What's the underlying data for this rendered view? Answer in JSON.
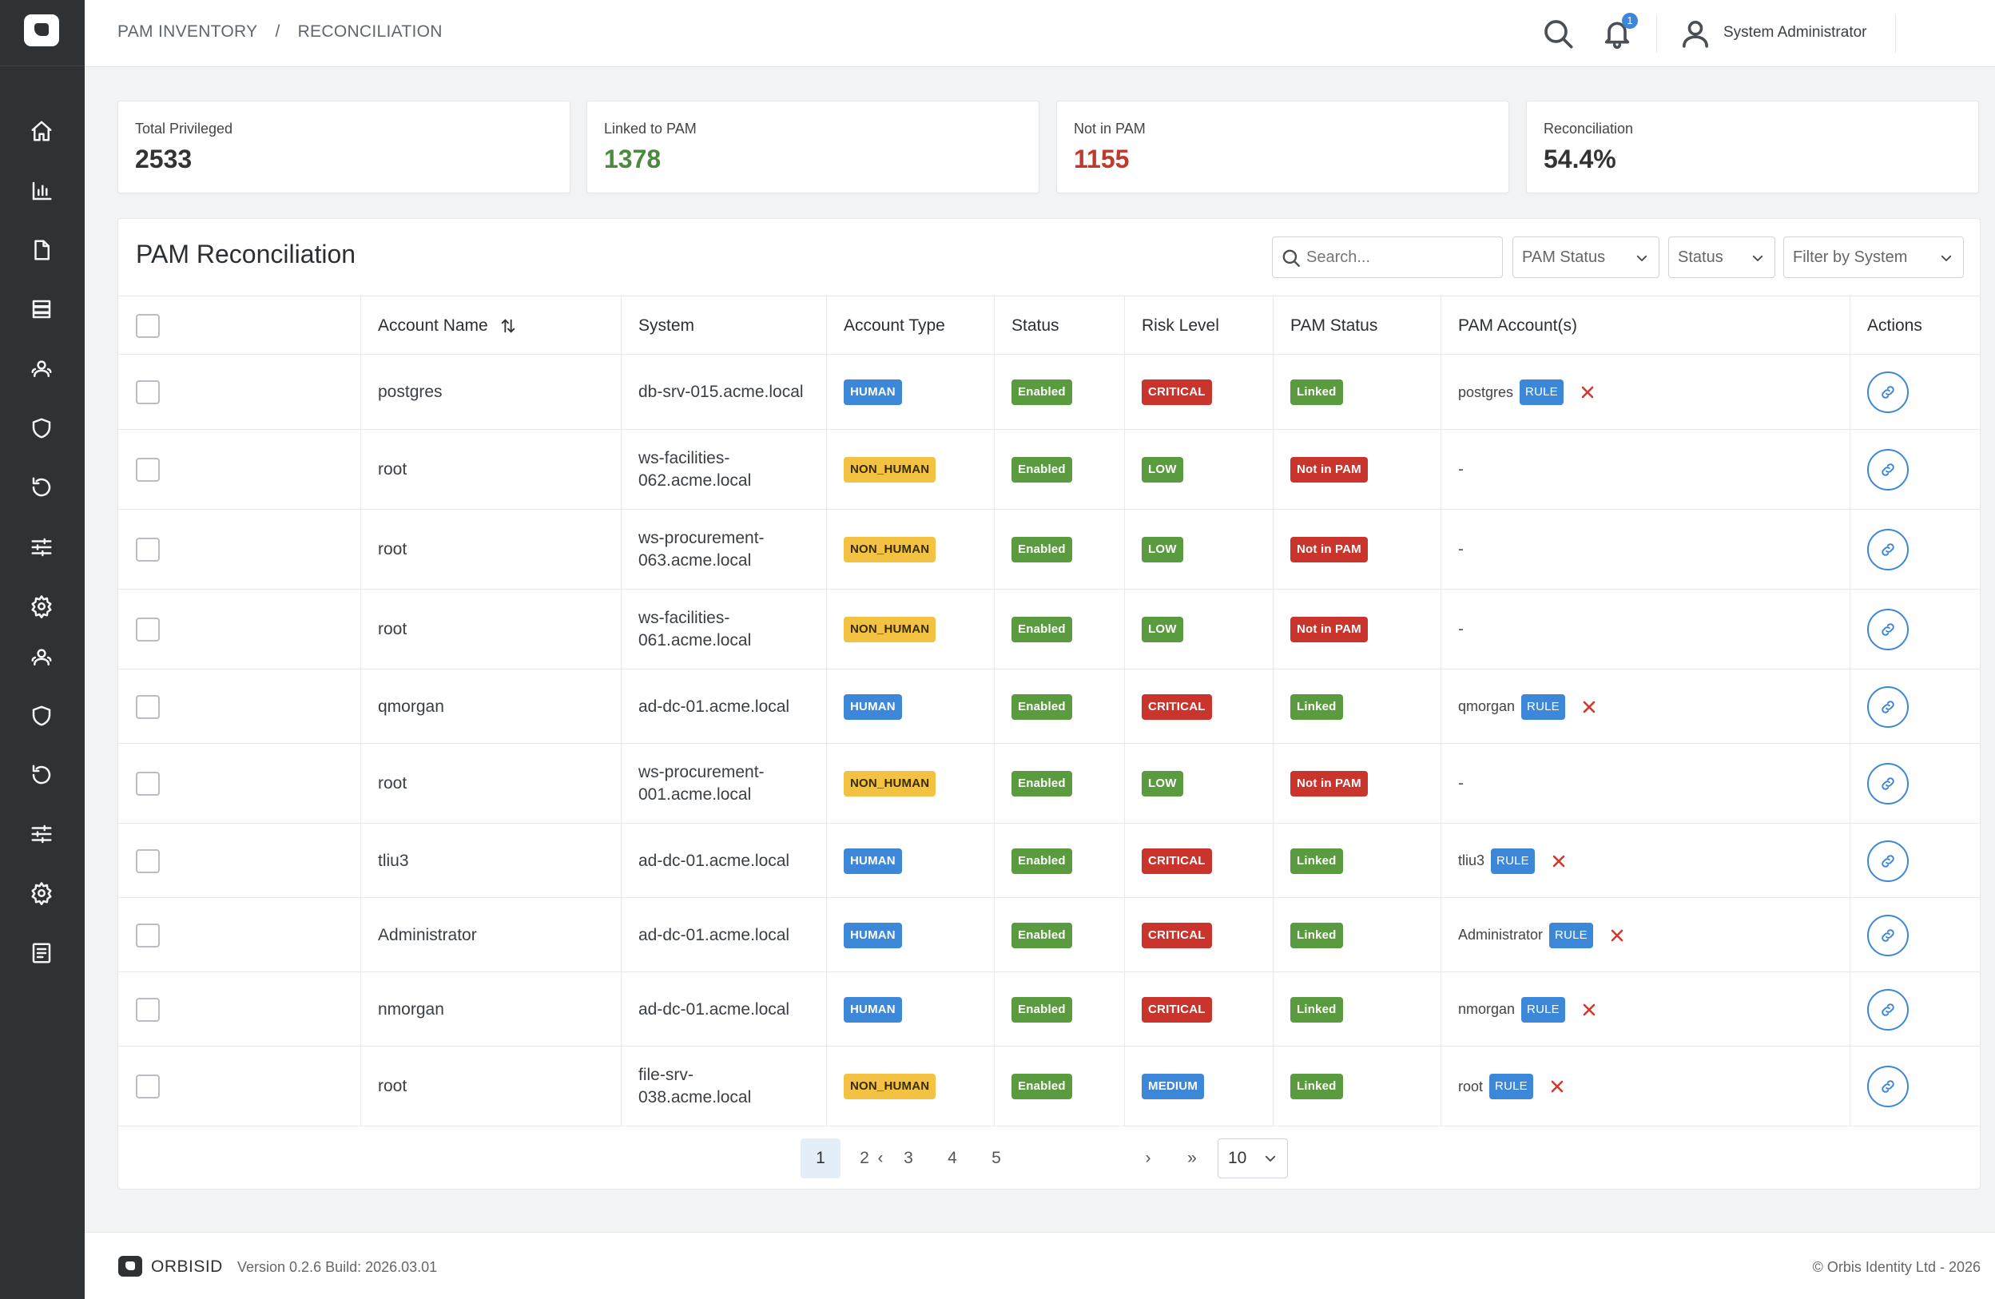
{
  "breadcrumb": [
    "PAM INVENTORY",
    "/",
    "RECONCILIATION"
  ],
  "header": {
    "notification_count": "1",
    "user_name": "System Administrator"
  },
  "sidebar": {
    "icons": [
      "home-icon",
      "chart-icon",
      "document-icon",
      "server-icon",
      "users-icon",
      "shield-icon",
      "history-icon",
      "sliders-icon",
      "settings-icon",
      "users-icon",
      "shield-icon",
      "history-icon",
      "sliders-icon",
      "settings-icon",
      "log-icon"
    ]
  },
  "stats": [
    {
      "label": "Total Privileged",
      "value": "2533",
      "tone": "default"
    },
    {
      "label": "Linked to PAM",
      "value": "1378",
      "tone": "green"
    },
    {
      "label": "Not in PAM",
      "value": "1155",
      "tone": "red"
    },
    {
      "label": "Reconciliation",
      "value": "54.4%",
      "tone": "default"
    }
  ],
  "panel": {
    "title": "PAM Reconciliation",
    "search_placeholder": "Search...",
    "filters": {
      "pam_status": "PAM Status",
      "status": "Status",
      "system": "Filter by System"
    }
  },
  "table": {
    "headers": [
      "Account Name",
      "System",
      "Account Type",
      "Status",
      "Risk Level",
      "PAM Status",
      "PAM Account(s)",
      "Actions"
    ],
    "rows": [
      {
        "account": "postgres",
        "system": [
          "db-srv-015.acme.local"
        ],
        "type": "HUMAN",
        "status": "Enabled",
        "risk": "CRITICAL",
        "pam_status": "Linked",
        "pam_account": "postgres",
        "rule": "RULE"
      },
      {
        "account": "root",
        "system": [
          "ws-facilities-",
          "062.acme.local"
        ],
        "type": "NON_HUMAN",
        "status": "Enabled",
        "risk": "LOW",
        "pam_status": "Not in PAM",
        "pam_account": "-",
        "rule": ""
      },
      {
        "account": "root",
        "system": [
          "ws-procurement-",
          "063.acme.local"
        ],
        "type": "NON_HUMAN",
        "status": "Enabled",
        "risk": "LOW",
        "pam_status": "Not in PAM",
        "pam_account": "-",
        "rule": ""
      },
      {
        "account": "root",
        "system": [
          "ws-facilities-",
          "061.acme.local"
        ],
        "type": "NON_HUMAN",
        "status": "Enabled",
        "risk": "LOW",
        "pam_status": "Not in PAM",
        "pam_account": "-",
        "rule": ""
      },
      {
        "account": "qmorgan",
        "system": [
          "ad-dc-01.acme.local"
        ],
        "type": "HUMAN",
        "status": "Enabled",
        "risk": "CRITICAL",
        "pam_status": "Linked",
        "pam_account": "qmorgan",
        "rule": "RULE"
      },
      {
        "account": "root",
        "system": [
          "ws-procurement-",
          "001.acme.local"
        ],
        "type": "NON_HUMAN",
        "status": "Enabled",
        "risk": "LOW",
        "pam_status": "Not in PAM",
        "pam_account": "-",
        "rule": ""
      },
      {
        "account": "tliu3",
        "system": [
          "ad-dc-01.acme.local"
        ],
        "type": "HUMAN",
        "status": "Enabled",
        "risk": "CRITICAL",
        "pam_status": "Linked",
        "pam_account": "tliu3",
        "rule": "RULE"
      },
      {
        "account": "Administrator",
        "system": [
          "ad-dc-01.acme.local"
        ],
        "type": "HUMAN",
        "status": "Enabled",
        "risk": "CRITICAL",
        "pam_status": "Linked",
        "pam_account": "Administrator",
        "rule": "RULE"
      },
      {
        "account": "nmorgan",
        "system": [
          "ad-dc-01.acme.local"
        ],
        "type": "HUMAN",
        "status": "Enabled",
        "risk": "CRITICAL",
        "pam_status": "Linked",
        "pam_account": "nmorgan",
        "rule": "RULE"
      },
      {
        "account": "root",
        "system": [
          "file-srv-",
          "038.acme.local"
        ],
        "type": "NON_HUMAN",
        "status": "Enabled",
        "risk": "MEDIUM",
        "pam_status": "Linked",
        "pam_account": "root",
        "rule": "RULE"
      }
    ]
  },
  "pagination": {
    "first": "«",
    "prev": "‹",
    "pages": [
      "1",
      "2",
      "3",
      "4",
      "5"
    ],
    "current": "1",
    "next": "›",
    "last": "»",
    "page_size": "10"
  },
  "footer": {
    "brand": "ORBISID",
    "version": "Version 0.2.6 Build: 2026.03.01",
    "copyright": "© Orbis Identity Ltd - 2026"
  }
}
